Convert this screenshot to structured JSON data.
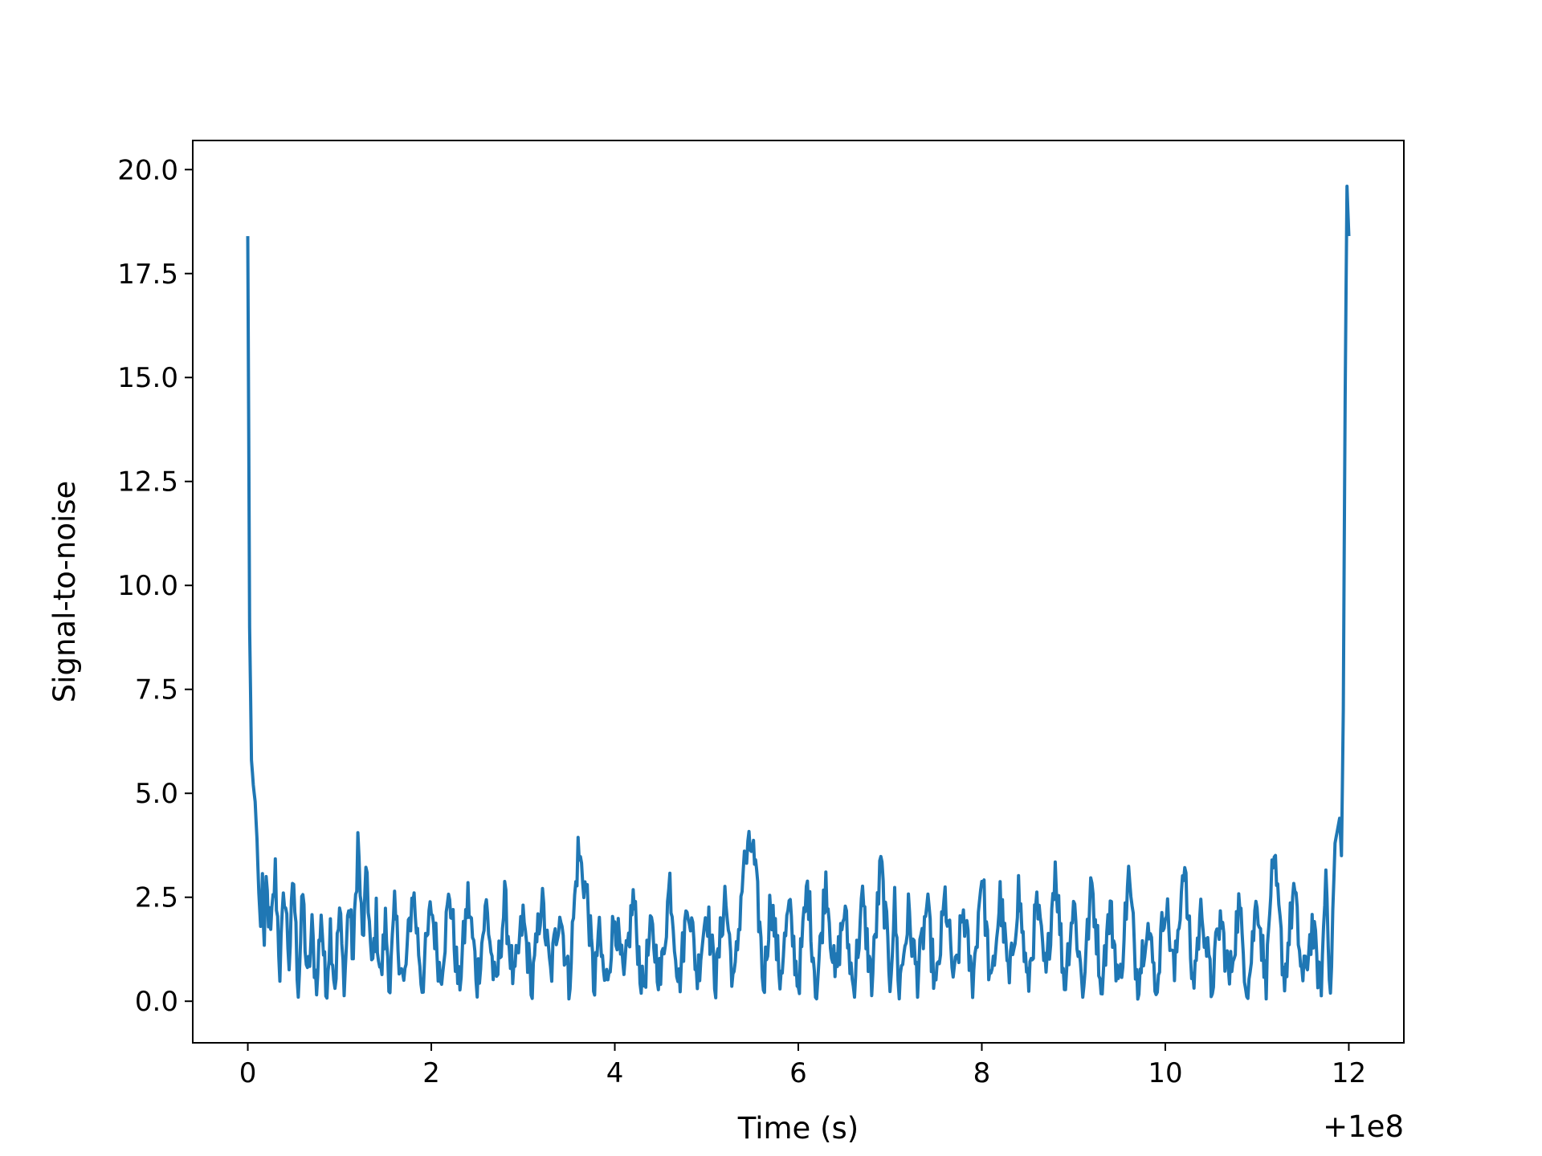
{
  "chart_data": {
    "type": "line",
    "title": "",
    "xlabel": "Time (s)",
    "ylabel": "Signal-to-noise",
    "x_offset_label": "+1e8",
    "xlim": [
      -0.6,
      12.6
    ],
    "ylim": [
      -1.0,
      20.7
    ],
    "xticks": [
      0,
      2,
      4,
      6,
      8,
      10,
      12
    ],
    "xtick_labels": [
      "0",
      "2",
      "4",
      "6",
      "8",
      "10",
      "12"
    ],
    "yticks": [
      0.0,
      2.5,
      5.0,
      7.5,
      10.0,
      12.5,
      15.0,
      17.5,
      20.0
    ],
    "ytick_labels": [
      "0.0",
      "2.5",
      "5.0",
      "7.5",
      "10.0",
      "12.5",
      "15.0",
      "17.5",
      "20.0"
    ],
    "grid": false,
    "line_color": "#1f77b4",
    "series": [
      {
        "x": [
          0.0,
          0.02,
          0.04,
          0.06,
          0.08,
          0.1,
          0.12,
          0.14,
          0.16,
          0.18,
          0.2,
          0.25,
          0.3,
          0.35,
          0.4,
          0.45,
          0.5,
          0.55,
          0.6,
          0.65,
          0.7,
          0.75,
          0.8,
          0.85,
          0.9,
          0.95,
          1.0,
          1.05,
          1.1,
          1.15,
          1.2,
          1.25,
          1.3,
          1.35,
          1.4,
          1.45,
          1.5,
          1.55,
          1.6,
          1.7,
          1.8,
          1.9,
          2.0,
          2.1,
          2.2,
          2.3,
          2.4,
          2.5,
          2.6,
          2.7,
          2.8,
          2.9,
          3.0,
          3.1,
          3.2,
          3.3,
          3.4,
          3.5,
          3.6,
          3.7,
          3.78,
          3.82,
          3.9,
          4.0,
          4.1,
          4.2,
          4.3,
          4.4,
          4.5,
          4.6,
          4.7,
          4.8,
          4.9,
          5.0,
          5.1,
          5.2,
          5.3,
          5.4,
          5.5,
          5.58,
          5.62,
          5.7,
          5.8,
          5.9,
          6.0,
          6.1,
          6.2,
          6.3,
          6.4,
          6.5,
          6.6,
          6.7,
          6.8,
          6.9,
          7.0,
          7.05,
          7.1,
          7.2,
          7.3,
          7.4,
          7.5,
          7.6,
          7.7,
          7.8,
          7.9,
          8.0,
          8.1,
          8.2,
          8.3,
          8.4,
          8.5,
          8.6,
          8.7,
          8.8,
          8.9,
          9.0,
          9.1,
          9.2,
          9.3,
          9.4,
          9.5,
          9.6,
          9.7,
          9.8,
          9.9,
          10.0,
          10.1,
          10.2,
          10.3,
          10.4,
          10.5,
          10.6,
          10.7,
          10.8,
          10.9,
          11.0,
          11.1,
          11.15,
          11.2,
          11.3,
          11.4,
          11.5,
          11.6,
          11.7,
          11.75,
          11.8,
          11.85,
          11.9,
          11.92,
          11.94,
          11.96,
          11.98,
          12.0
        ],
        "y": [
          18.4,
          9.0,
          5.8,
          5.2,
          4.8,
          3.9,
          2.6,
          1.8,
          2.9,
          1.2,
          2.8,
          1.5,
          3.1,
          0.8,
          2.7,
          1.0,
          2.9,
          0.2,
          2.6,
          0.4,
          1.7,
          0.3,
          2.2,
          0.2,
          1.8,
          0.4,
          2.2,
          0.3,
          2.4,
          1.0,
          3.9,
          1.4,
          3.1,
          0.6,
          2.0,
          0.5,
          1.9,
          0.4,
          2.1,
          0.3,
          2.7,
          0.4,
          2.3,
          0.6,
          2.6,
          0.3,
          2.5,
          0.5,
          2.3,
          0.2,
          2.4,
          0.4,
          2.0,
          0.3,
          2.5,
          0.6,
          2.3,
          0.4,
          3.6,
          2.5,
          0.2,
          1.7,
          0.3,
          2.1,
          0.4,
          2.5,
          0.3,
          1.7,
          0.5,
          2.9,
          0.4,
          2.5,
          0.6,
          2.3,
          0.4,
          2.6,
          0.3,
          3.2,
          3.8,
          1.8,
          0.3,
          2.5,
          0.6,
          2.2,
          0.4,
          2.8,
          0.2,
          3.0,
          0.5,
          2.2,
          0.3,
          2.4,
          0.4,
          3.3,
          0.6,
          2.3,
          0.3,
          2.1,
          0.5,
          2.3,
          0.2,
          2.5,
          0.4,
          2.2,
          0.3,
          3.2,
          0.2,
          2.5,
          0.4,
          2.7,
          0.3,
          2.3,
          0.5,
          3.3,
          0.4,
          2.4,
          0.3,
          2.8,
          0.5,
          2.2,
          0.3,
          3.0,
          0.4,
          2.0,
          0.3,
          2.5,
          0.6,
          3.4,
          0.4,
          2.3,
          0.3,
          2.0,
          0.5,
          2.3,
          0.2,
          2.6,
          0.3,
          2.8,
          3.0,
          0.5,
          2.7,
          0.4,
          1.8,
          0.2,
          3.2,
          0.3,
          3.8,
          4.4,
          3.5,
          7.0,
          14.5,
          19.6,
          18.4
        ],
        "mode": "noisy"
      }
    ]
  }
}
